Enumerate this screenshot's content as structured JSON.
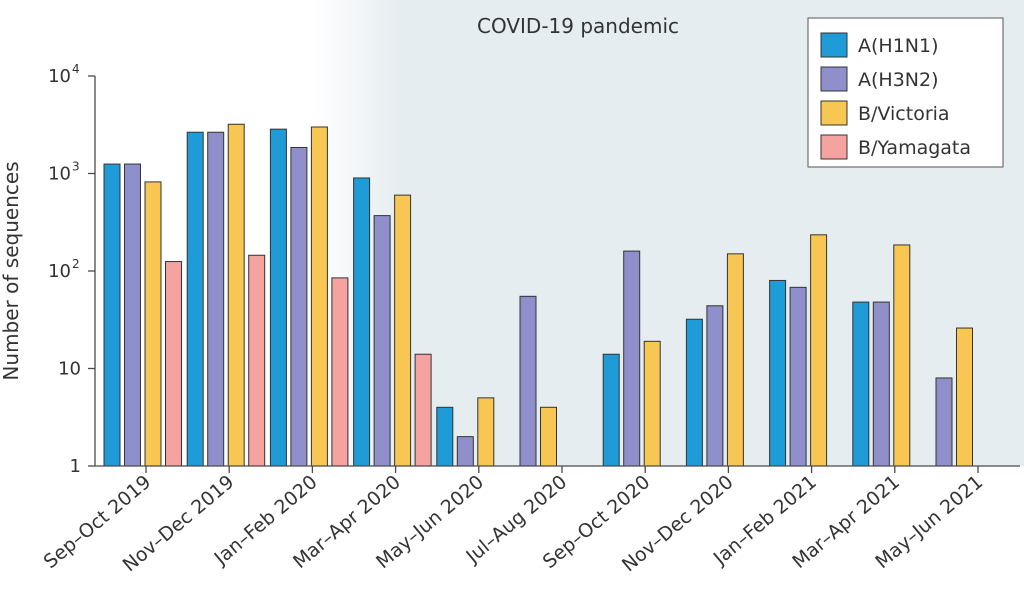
{
  "chart_data": {
    "type": "bar",
    "title": "",
    "annotation": "COVID-19 pandemic",
    "xlabel": "",
    "ylabel": "Number of sequences",
    "yscale": "log",
    "ylim": [
      1,
      10000
    ],
    "yticks": [
      {
        "value": 1,
        "base": "1",
        "exp": ""
      },
      {
        "value": 10,
        "base": "10",
        "exp": ""
      },
      {
        "value": 100,
        "base": "10",
        "exp": "2"
      },
      {
        "value": 1000,
        "base": "10",
        "exp": "3"
      },
      {
        "value": 10000,
        "base": "10",
        "exp": "4"
      }
    ],
    "pandemic_start_category": "Mar–Apr 2020",
    "legend_position": "top-right",
    "categories": [
      "Sep–Oct 2019",
      "Nov–Dec 2019",
      "Jan–Feb 2020",
      "Mar–Apr 2020",
      "May–Jun 2020",
      "Jul–Aug 2020",
      "Sep–Oct 2020",
      "Nov–Dec 2020",
      "Jan–Feb 2021",
      "Mar–Apr 2021",
      "May–Jun 2021"
    ],
    "series": [
      {
        "name": "A(H1N1)",
        "color": "#1f9bd7",
        "values": [
          1250,
          2650,
          2850,
          900,
          4,
          null,
          14,
          32,
          80,
          48,
          null
        ]
      },
      {
        "name": "A(H3N2)",
        "color": "#8f8fcc",
        "values": [
          1250,
          2650,
          1850,
          370,
          2,
          55,
          160,
          44,
          68,
          48,
          8
        ]
      },
      {
        "name": "B/Victoria",
        "color": "#f7c653",
        "values": [
          820,
          3200,
          3000,
          600,
          5,
          4,
          19,
          150,
          235,
          185,
          26
        ]
      },
      {
        "name": "B/Yamagata",
        "color": "#f4a3a0",
        "values": [
          125,
          145,
          85,
          14,
          null,
          null,
          null,
          null,
          null,
          null,
          null
        ]
      }
    ]
  }
}
